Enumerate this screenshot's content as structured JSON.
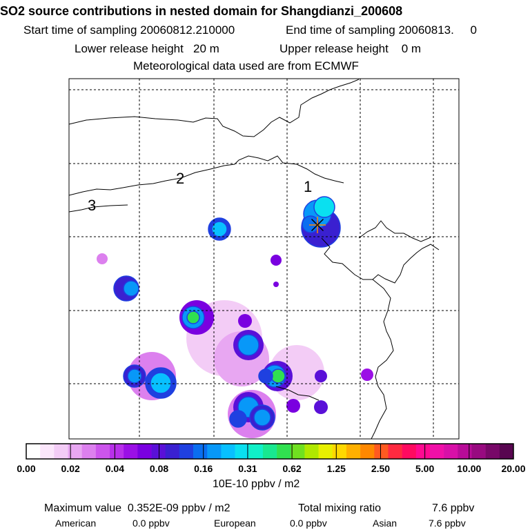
{
  "header": {
    "title": "SO2 source contributions in nested domain for Shangdianzi_200608",
    "start_label": "Start time of sampling 20060812.210000",
    "end_label": "End time of sampling 20060813.     0",
    "lower_label": "Lower release height   20 m",
    "upper_label": "Upper release height    0 m",
    "met_label": "Meteorological data used are from ECMWF"
  },
  "map": {
    "region_labels": [
      "1",
      "2",
      "3"
    ],
    "station_marker": "star-icon"
  },
  "chart_data": {
    "type": "heatmap",
    "title": "SO2 source contributions in nested domain for Shangdianzi_200608",
    "colorbar": {
      "ticks": [
        "0.00",
        "0.02",
        "0.04",
        "0.08",
        "0.16",
        "0.31",
        "0.62",
        "1.25",
        "2.50",
        "5.00",
        "10.00",
        "20.00"
      ],
      "unit": "10E-10 ppbv / m2",
      "colors": [
        "#ffffff",
        "#fbe6fb",
        "#f3ccf6",
        "#e8a7f2",
        "#dc80ee",
        "#cc55ec",
        "#b830ea",
        "#9b10e6",
        "#7a00e0",
        "#5a10d8",
        "#3a20d0",
        "#1f40e0",
        "#0a6ef0",
        "#0898f8",
        "#08c0ff",
        "#0ae0f0",
        "#10f0c8",
        "#18e890",
        "#30e050",
        "#70e020",
        "#b0e800",
        "#e8f000",
        "#ffd800",
        "#ffb000",
        "#ff8800",
        "#ff5a20",
        "#ff2a40",
        "#ff0a60",
        "#ff0a90",
        "#f010a8",
        "#d810a8",
        "#b80c98",
        "#980a80",
        "#780868",
        "#580650"
      ]
    },
    "footer": {
      "max_label": "Maximum value  0.352E-09 ppbv / m2",
      "total_label": "Total mixing ratio",
      "total_value": "7.6 ppbv",
      "american_label": "American",
      "american_value": "0.0 ppbv",
      "european_label": "European",
      "european_value": "0.0 ppbv",
      "asian_label": "Asian",
      "asian_value": "7.6 ppbv"
    }
  }
}
